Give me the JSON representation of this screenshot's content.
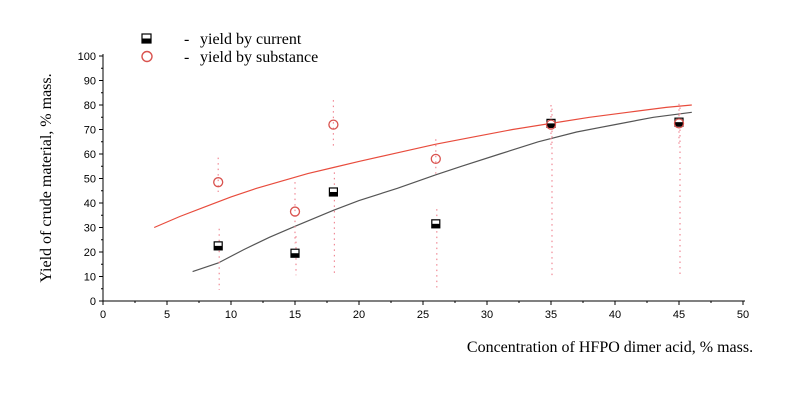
{
  "chart_data": {
    "type": "scatter",
    "xlabel": "Concentration of HFPO dimer acid, % mass.",
    "ylabel": "Yield of crude material, % mass.",
    "xlim": [
      0,
      50
    ],
    "ylim": [
      0,
      100
    ],
    "xticks": [
      0,
      5,
      10,
      15,
      20,
      25,
      30,
      35,
      40,
      45,
      50
    ],
    "yticks": [
      0,
      10,
      20,
      30,
      40,
      50,
      60,
      70,
      80,
      90,
      100
    ],
    "legend_position": "top-left",
    "series": [
      {
        "name": "yield  by current",
        "marker": "half-filled-square",
        "color": "#000000",
        "points": [
          [
            9,
            22.5
          ],
          [
            15,
            19.5
          ],
          [
            18,
            44.5
          ],
          [
            26,
            31.5
          ],
          [
            35,
            72.5
          ],
          [
            45,
            73
          ]
        ],
        "error_high": [
          7,
          7,
          8,
          6,
          6,
          6
        ],
        "error_low": [
          18,
          9,
          34,
          26,
          62,
          62
        ]
      },
      {
        "name": "yield  by substance",
        "marker": "open-circle",
        "color": "#d9534f",
        "points": [
          [
            9,
            48.5
          ],
          [
            15,
            36.5
          ],
          [
            18,
            72
          ],
          [
            26,
            58
          ],
          [
            35,
            72
          ],
          [
            45,
            72.5
          ]
        ],
        "error_high": [
          10,
          12,
          10,
          8,
          8,
          8
        ],
        "error_low": [
          4,
          13,
          10,
          6,
          10,
          10
        ]
      }
    ],
    "fit_lines": [
      {
        "color": "#555555",
        "x": [
          7,
          9,
          11,
          13,
          15,
          18,
          20,
          23,
          26,
          28,
          31,
          34,
          37,
          40,
          43,
          46
        ],
        "y": [
          12,
          15.5,
          21,
          26,
          30.5,
          37,
          41,
          46,
          51.5,
          55,
          60,
          65,
          69,
          72,
          75,
          77
        ]
      },
      {
        "color": "#e84c3d",
        "x": [
          4,
          6,
          8,
          10,
          12,
          14,
          16,
          18,
          20,
          23,
          26,
          29,
          32,
          35,
          38,
          41,
          44,
          46
        ],
        "y": [
          30,
          34.5,
          38.5,
          42.5,
          46,
          49,
          52,
          54.5,
          57,
          60.5,
          64,
          67,
          70,
          72.5,
          75,
          77,
          79,
          80
        ]
      }
    ]
  }
}
